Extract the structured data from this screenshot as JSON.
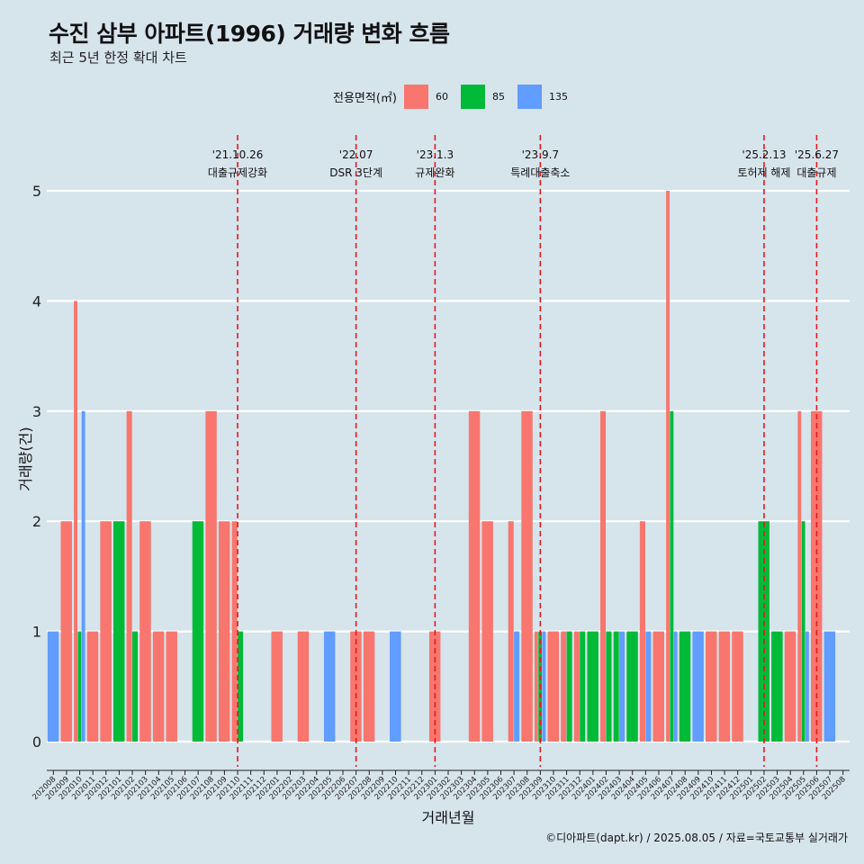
{
  "header": {
    "title": "수진 삼부 아파트(1996) 거래량 변화 흐름",
    "subtitle": "최근 5년 한정 확대 차트"
  },
  "legend": {
    "title": "전용면적(㎡)",
    "items": [
      {
        "label": "60",
        "color": "#f8766d"
      },
      {
        "label": "85",
        "color": "#00ba38"
      },
      {
        "label": "135",
        "color": "#619cff"
      }
    ]
  },
  "caption": "©디아파트(dapt.kr) / 2025.08.05 / 자료=국토교통부 실거래가",
  "chart_data": {
    "type": "bar",
    "xlabel": "거래년월",
    "ylabel": "거래량(건)",
    "ylim": [
      0,
      5
    ],
    "yticks": [
      0,
      1,
      2,
      3,
      4,
      5
    ],
    "grid": true,
    "legend_position": "top",
    "categories": [
      "202008",
      "202009",
      "202010",
      "202011",
      "202012",
      "202101",
      "202102",
      "202103",
      "202104",
      "202105",
      "202106",
      "202107",
      "202108",
      "202109",
      "202110",
      "202111",
      "202112",
      "202201",
      "202202",
      "202203",
      "202204",
      "202205",
      "202206",
      "202207",
      "202208",
      "202209",
      "202210",
      "202211",
      "202212",
      "202301",
      "202302",
      "202303",
      "202304",
      "202305",
      "202306",
      "202307",
      "202308",
      "202309",
      "202310",
      "202311",
      "202312",
      "202401",
      "202402",
      "202403",
      "202404",
      "202405",
      "202406",
      "202407",
      "202408",
      "202409",
      "202410",
      "202411",
      "202412",
      "202501",
      "202502",
      "202503",
      "202504",
      "202505",
      "202506",
      "202507",
      "202508"
    ],
    "series": [
      {
        "name": "60",
        "color": "#f8766d",
        "values": [
          0,
          2,
          4,
          1,
          2,
          0,
          3,
          2,
          1,
          1,
          0,
          0,
          3,
          2,
          2,
          0,
          0,
          1,
          0,
          1,
          0,
          0,
          0,
          1,
          1,
          0,
          0,
          0,
          0,
          1,
          0,
          0,
          3,
          2,
          0,
          2,
          3,
          1,
          1,
          1,
          1,
          0,
          3,
          0,
          0,
          2,
          1,
          5,
          0,
          0,
          1,
          1,
          1,
          0,
          0,
          0,
          1,
          3,
          3,
          0,
          0
        ]
      },
      {
        "name": "85",
        "color": "#00ba38",
        "values": [
          0,
          0,
          1,
          0,
          0,
          2,
          1,
          0,
          0,
          0,
          0,
          2,
          0,
          0,
          1,
          0,
          0,
          0,
          0,
          0,
          0,
          0,
          0,
          0,
          0,
          0,
          0,
          0,
          0,
          0,
          0,
          0,
          0,
          0,
          0,
          0,
          0,
          1,
          0,
          1,
          1,
          1,
          1,
          1,
          1,
          0,
          0,
          3,
          1,
          0,
          0,
          0,
          0,
          0,
          2,
          1,
          0,
          2,
          0,
          0,
          0
        ]
      },
      {
        "name": "135",
        "color": "#619cff",
        "values": [
          1,
          0,
          3,
          0,
          0,
          0,
          0,
          0,
          0,
          0,
          0,
          0,
          0,
          0,
          0,
          0,
          0,
          0,
          0,
          0,
          0,
          1,
          0,
          0,
          0,
          0,
          1,
          0,
          0,
          0,
          0,
          0,
          0,
          0,
          0,
          1,
          0,
          1,
          0,
          0,
          0,
          0,
          0,
          1,
          0,
          1,
          0,
          1,
          0,
          1,
          0,
          0,
          0,
          0,
          0,
          0,
          0,
          1,
          0,
          1,
          0
        ]
      }
    ],
    "annotations": [
      {
        "date": "'21.10.26",
        "text": "대출규제강화",
        "category": "202110"
      },
      {
        "date": "'22.07",
        "text": "DSR 3단계",
        "category": "202207"
      },
      {
        "date": "'23.1.3",
        "text": "규제완화",
        "category": "202301"
      },
      {
        "date": "'23.9.7",
        "text": "특례대출축소",
        "category": "202309"
      },
      {
        "date": "'25.2.13",
        "text": "토허제 해제",
        "category": "202502"
      },
      {
        "date": "'25.6.27",
        "text": "대출규제",
        "category": "202506"
      }
    ]
  }
}
